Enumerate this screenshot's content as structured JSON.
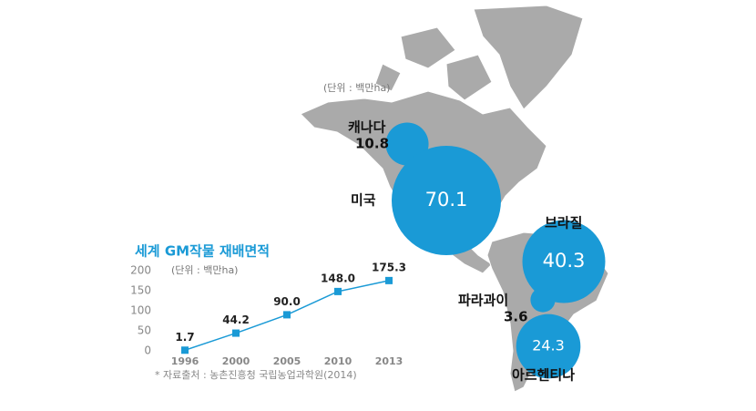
{
  "chart_data": [
    {
      "type": "line",
      "title": "세계 GM작물 재배면적",
      "subtitle": "(단위 : 백만ha)",
      "categories": [
        "1996",
        "2000",
        "2005",
        "2010",
        "2013"
      ],
      "values": [
        1.7,
        44.2,
        90.0,
        148.0,
        175.3
      ],
      "value_labels": [
        "1.7",
        "44.2",
        "90.0",
        "148.0",
        "175.3"
      ],
      "color": "#1a9ad6",
      "ylim": [
        0,
        200
      ],
      "yticks": [
        0,
        50,
        100,
        150,
        200
      ],
      "note": "* 자료출처 : 농촌진흥청 국립농업과학원(2014)"
    },
    {
      "type": "bubble",
      "subtitle": "(단위 : 백만ha)",
      "categories": [
        "캐나다",
        "미국",
        "브라질",
        "파라과이",
        "아르헨티나"
      ],
      "values": [
        10.8,
        70.1,
        40.3,
        3.6,
        24.3
      ],
      "color": "#1a9ad6"
    }
  ]
}
